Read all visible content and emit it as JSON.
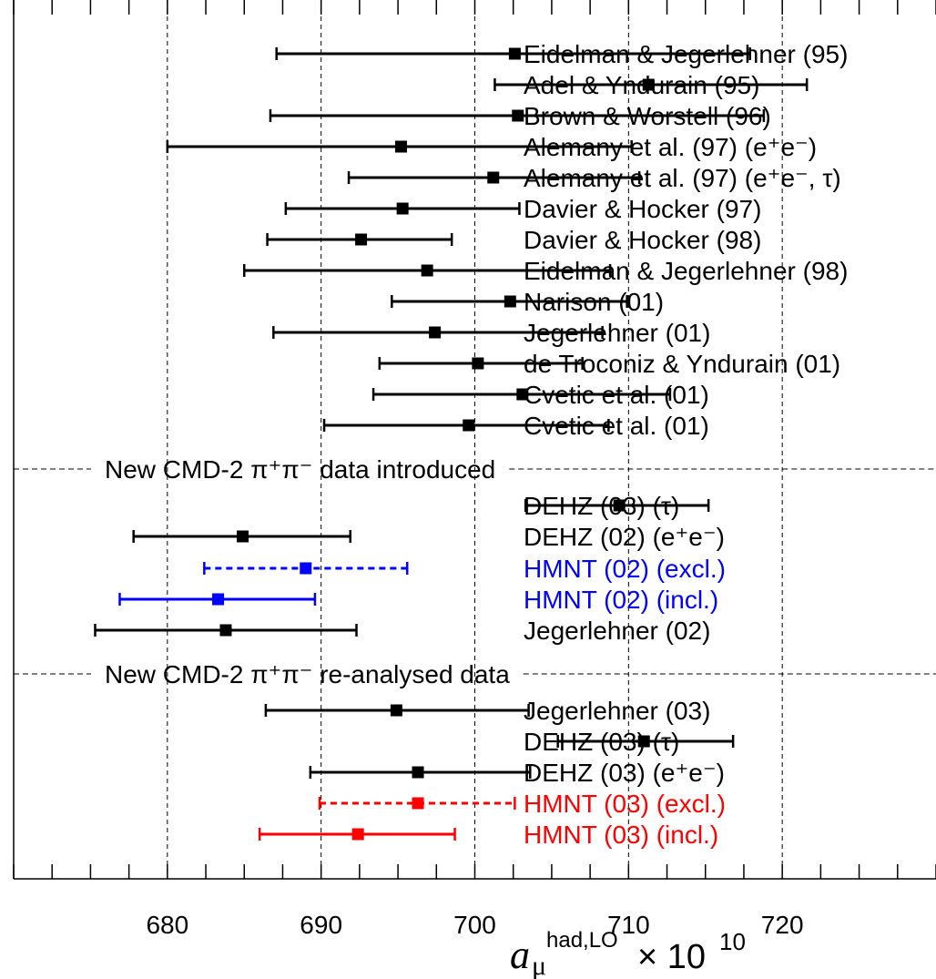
{
  "chart_data": {
    "type": "scatter",
    "xlim": [
      670,
      730
    ],
    "xticks": [
      680,
      690,
      700,
      710,
      720
    ],
    "xlabel": {
      "main": "a",
      "sub": "μ",
      "sup": "had,LO",
      "times": "× 10",
      "exp": "10"
    },
    "grid_x": [
      680,
      690,
      700,
      710,
      720
    ],
    "sections": [
      {
        "title": "",
        "entries": [
          {
            "label": "Eidelman & Jegerlehner (95)",
            "value": 702.6,
            "lo": 687.1,
            "hi": 717.9,
            "color": "#000000",
            "style": "solid"
          },
          {
            "label": "Adel & Yndurain (95)",
            "value": 711.3,
            "lo": 701.3,
            "hi": 721.6,
            "color": "#000000",
            "style": "solid"
          },
          {
            "label": "Brown & Worstell (96)",
            "value": 702.8,
            "lo": 686.7,
            "hi": 718.8,
            "color": "#000000",
            "style": "solid"
          },
          {
            "label": "Alemany et al. (97) (e⁺e⁻)",
            "value": 695.2,
            "lo": 680.0,
            "hi": 710.2,
            "color": "#000000",
            "style": "solid"
          },
          {
            "label": "Alemany et al. (97) (e⁺e⁻, τ)",
            "value": 701.2,
            "lo": 691.8,
            "hi": 710.7,
            "color": "#000000",
            "style": "solid"
          },
          {
            "label": "Davier & Hocker (97)",
            "value": 695.3,
            "lo": 687.7,
            "hi": 702.9,
            "color": "#000000",
            "style": "solid"
          },
          {
            "label": "Davier & Hocker (98)",
            "value": 692.6,
            "lo": 686.5,
            "hi": 698.5,
            "color": "#000000",
            "style": "solid"
          },
          {
            "label": "Eidelman & Jegerlehner (98)",
            "value": 696.9,
            "lo": 685.0,
            "hi": 708.8,
            "color": "#000000",
            "style": "solid"
          },
          {
            "label": "Narison (01)",
            "value": 702.3,
            "lo": 694.6,
            "hi": 709.9,
            "color": "#000000",
            "style": "solid"
          },
          {
            "label": "Jegerlehner (01)",
            "value": 697.4,
            "lo": 686.9,
            "hi": 708.3,
            "color": "#000000",
            "style": "solid"
          },
          {
            "label": "de Troconiz & Yndurain (01)",
            "value": 700.2,
            "lo": 693.8,
            "hi": 707.0,
            "color": "#000000",
            "style": "solid"
          },
          {
            "label": "Cvetic et al. (01)",
            "value": 703.1,
            "lo": 693.4,
            "hi": 712.7,
            "color": "#000000",
            "style": "solid"
          },
          {
            "label": "Cvetic et al. (01)",
            "value": 699.6,
            "lo": 690.2,
            "hi": 708.7,
            "color": "#000000",
            "style": "solid"
          }
        ]
      },
      {
        "title": "New CMD-2 π⁺π⁻ data introduced",
        "entries": [
          {
            "label": "DEHZ (03) (τ)",
            "value": 709.4,
            "lo": 703.3,
            "hi": 715.2,
            "color": "#000000",
            "style": "solid"
          },
          {
            "label": "DEHZ (02) (e⁺e⁻)",
            "value": 684.9,
            "lo": 677.8,
            "hi": 691.9,
            "color": "#000000",
            "style": "solid"
          },
          {
            "label": "HMNT (02) (excl.)",
            "value": 689.0,
            "lo": 682.4,
            "hi": 695.6,
            "color": "#0000ff",
            "style": "dashed"
          },
          {
            "label": "HMNT (02) (incl.)",
            "value": 683.3,
            "lo": 676.9,
            "hi": 689.6,
            "color": "#0000ff",
            "style": "solid"
          },
          {
            "label": "Jegerlehner (02)",
            "value": 683.8,
            "lo": 675.3,
            "hi": 692.3,
            "color": "#000000",
            "style": "solid"
          }
        ]
      },
      {
        "title": "New CMD-2 π⁺π⁻ re-analysed data",
        "entries": [
          {
            "label": "Jegerlehner (03)",
            "value": 694.9,
            "lo": 686.4,
            "hi": 703.5,
            "color": "#000000",
            "style": "solid"
          },
          {
            "label": "DEHZ (03) (τ)",
            "value": 711.0,
            "lo": 705.4,
            "hi": 716.8,
            "color": "#000000",
            "style": "solid"
          },
          {
            "label": "DEHZ (03) (e⁺e⁻)",
            "value": 696.3,
            "lo": 689.3,
            "hi": 703.6,
            "color": "#000000",
            "style": "solid"
          },
          {
            "label": "HMNT (03) (excl.)",
            "value": 696.3,
            "lo": 689.9,
            "hi": 702.6,
            "color": "#ff0000",
            "style": "dashed"
          },
          {
            "label": "HMNT (03) (incl.)",
            "value": 692.4,
            "lo": 686.0,
            "hi": 698.7,
            "color": "#ff0000",
            "style": "solid"
          }
        ]
      }
    ]
  }
}
